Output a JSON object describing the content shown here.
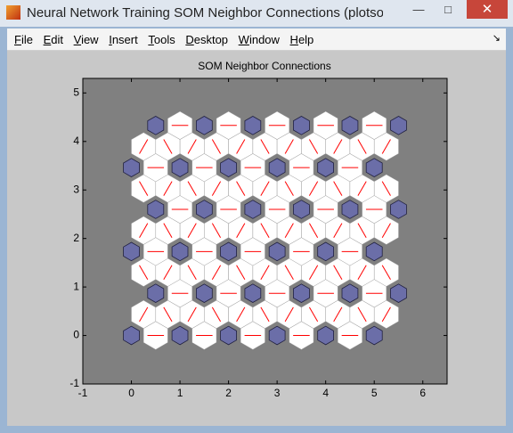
{
  "window": {
    "title": "Neural Network Training SOM Neighbor Connections (plotsomnc"
  },
  "menu": [
    "File",
    "Edit",
    "View",
    "Insert",
    "Tools",
    "Desktop",
    "Window",
    "Help"
  ],
  "chart_data": {
    "type": "som",
    "title": "SOM Neighbor Connections",
    "x": [
      0,
      1,
      2,
      3,
      4,
      5,
      0.5,
      1.5,
      2.5,
      3.5,
      4.5,
      5.5,
      0,
      1,
      2,
      3,
      4,
      5,
      0.5,
      1.5,
      2.5,
      3.5,
      4.5,
      5.5,
      0,
      1,
      2,
      3,
      4,
      5,
      0.5,
      1.5,
      2.5,
      3.5,
      4.5,
      5.5
    ],
    "values": [
      0,
      0,
      0,
      0,
      0,
      0,
      0.87,
      0.87,
      0.87,
      0.87,
      0.87,
      0.87,
      1.73,
      1.73,
      1.73,
      1.73,
      1.73,
      1.73,
      2.6,
      2.6,
      2.6,
      2.6,
      2.6,
      2.6,
      3.46,
      3.46,
      3.46,
      3.46,
      3.46,
      3.46,
      4.33,
      4.33,
      4.33,
      4.33,
      4.33,
      4.33
    ],
    "color": "#6b6ea8",
    "connection_color": "#ff0000",
    "background": "#808080",
    "xlim": [
      -1,
      6.5
    ],
    "ylim": [
      -1,
      5.3
    ],
    "xticks": [
      -1,
      0,
      1,
      2,
      3,
      4,
      5,
      6
    ],
    "yticks": [
      -1,
      0,
      1,
      2,
      3,
      4,
      5
    ]
  }
}
